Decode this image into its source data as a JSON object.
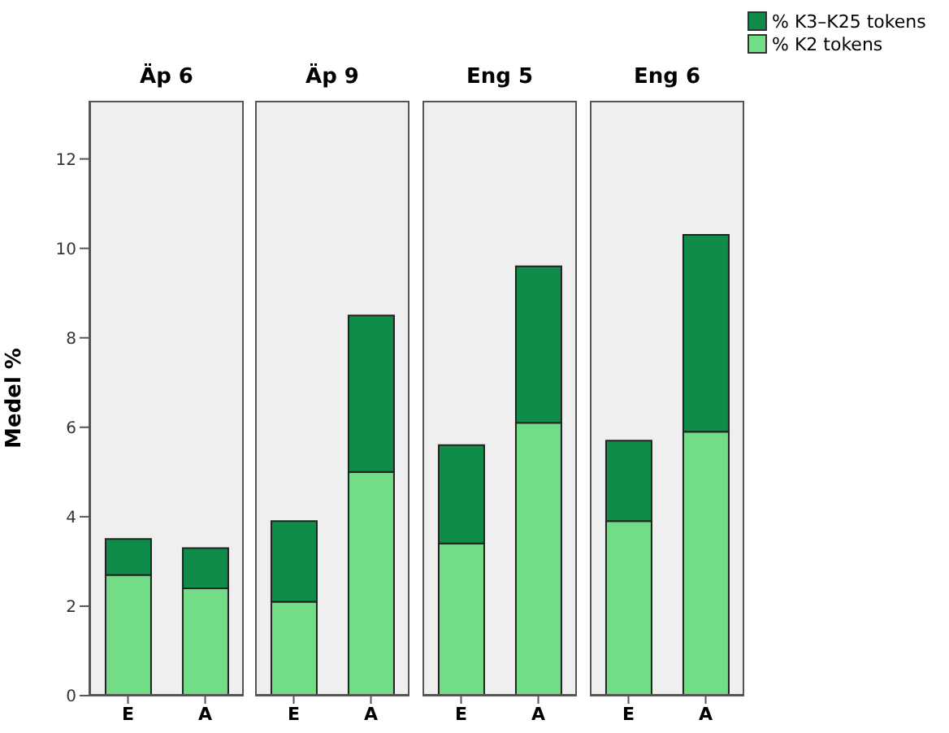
{
  "chart_data": [
    {
      "type": "bar",
      "title": "Äp 6",
      "ylabel": "Medel %",
      "categories": [
        "E",
        "A"
      ],
      "stacked": true,
      "ylim": [
        0,
        13.3
      ],
      "yticks": [
        0,
        2,
        4,
        6,
        8,
        10,
        12
      ],
      "series": [
        {
          "color": "#72dc86",
          "values": [
            2.7,
            2.4
          ]
        },
        {
          "color": "#108c4a",
          "values": [
            0.8,
            0.9
          ]
        }
      ]
    },
    {
      "type": "bar",
      "title": "Äp 9",
      "categories": [
        "E",
        "A"
      ],
      "stacked": true,
      "ylim": [
        0,
        13.3
      ],
      "yticks": [
        0,
        2,
        4,
        6,
        8,
        10,
        12
      ],
      "tick_labels": "x",
      "series": [
        {
          "color": "#72dc86",
          "values": [
            2.1,
            5.0
          ]
        },
        {
          "color": "#108c4a",
          "values": [
            1.8,
            3.5
          ]
        }
      ]
    },
    {
      "type": "bar",
      "title": "Eng 5",
      "categories": [
        "E",
        "A"
      ],
      "stacked": true,
      "ylim": [
        0,
        13.3
      ],
      "yticks": [
        0,
        2,
        4,
        6,
        8,
        10,
        12
      ],
      "tick_labels": "x",
      "series": [
        {
          "color": "#72dc86",
          "values": [
            3.4,
            6.1
          ]
        },
        {
          "color": "#108c4a",
          "values": [
            2.2,
            3.5
          ]
        }
      ]
    },
    {
      "type": "bar",
      "title": "Eng 6",
      "categories": [
        "E",
        "A"
      ],
      "stacked": true,
      "ylim": [
        0,
        13.3
      ],
      "yticks": [
        0,
        2,
        4,
        6,
        8,
        10,
        12
      ],
      "tick_labels": "x",
      "legend": "top right",
      "series": [
        {
          "name": "% K2 tokens",
          "color": "#72dc86",
          "values": [
            3.9,
            5.9
          ]
        },
        {
          "name": "% K3–K25 tokens",
          "color": "#108c4a",
          "values": [
            1.8,
            4.4
          ]
        }
      ]
    }
  ]
}
